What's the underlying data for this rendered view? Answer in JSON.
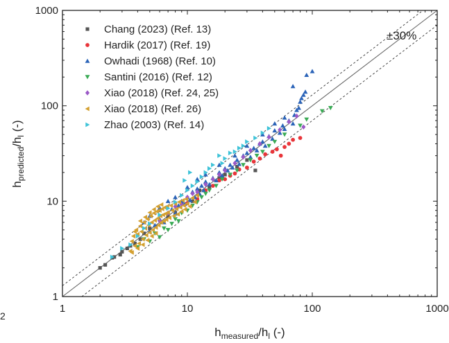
{
  "chart_data": {
    "type": "scatter",
    "xscale": "log",
    "yscale": "log",
    "xlim": [
      1,
      1000
    ],
    "ylim": [
      1,
      1000
    ],
    "xticks": [
      "1",
      "10",
      "100",
      "1000"
    ],
    "yticks": [
      "1",
      "10",
      "100",
      "1000"
    ],
    "xlabel": {
      "main": "h",
      "sub1": "measured",
      "mid": "/h",
      "sub2": "l",
      "end": " (-)"
    },
    "ylabel": {
      "main": "h",
      "sub1": "predicted",
      "mid": "/h",
      "sub2": "l",
      "end": " (-)"
    },
    "annotation": "±30%",
    "reference_lines": [
      {
        "kind": "parity",
        "factor": 1.0,
        "style": "solid"
      },
      {
        "kind": "band",
        "factor": 1.3,
        "style": "dashed"
      },
      {
        "kind": "band",
        "factor": 0.7,
        "style": "dashed"
      }
    ],
    "legend_position": "top-left",
    "series": [
      {
        "name": "Chang (2023) (Ref. 13)",
        "marker": "square",
        "color": "#555555",
        "points": [
          [
            2.0,
            2.0
          ],
          [
            2.2,
            2.15
          ],
          [
            2.5,
            2.55
          ],
          [
            2.6,
            2.6
          ],
          [
            2.9,
            2.75
          ],
          [
            3.0,
            2.95
          ],
          [
            3.3,
            3.2
          ],
          [
            3.5,
            3.4
          ],
          [
            3.8,
            3.6
          ],
          [
            4.2,
            4.0
          ],
          [
            4.5,
            4.6
          ],
          [
            5.0,
            5.2
          ],
          [
            5.6,
            5.4
          ],
          [
            6.2,
            6.0
          ],
          [
            7.0,
            6.9
          ],
          [
            8.0,
            7.6
          ],
          [
            9.0,
            9.5
          ],
          [
            11.0,
            10.0
          ],
          [
            12.5,
            13.0
          ],
          [
            15.0,
            14.2
          ],
          [
            18.0,
            17.5
          ],
          [
            20.0,
            19.0
          ],
          [
            25.0,
            23.0
          ],
          [
            30.0,
            27.0
          ],
          [
            35.0,
            21.0
          ]
        ]
      },
      {
        "name": "Hardik (2017) (Ref. 19)",
        "marker": "circle",
        "color": "#e8353a",
        "points": [
          [
            10.0,
            9.5
          ],
          [
            12.0,
            10.5
          ],
          [
            14.0,
            13.0
          ],
          [
            16.0,
            14.5
          ],
          [
            18.0,
            16.5
          ],
          [
            20.0,
            17.0
          ],
          [
            22.0,
            18.5
          ],
          [
            24.0,
            19.5
          ],
          [
            26.0,
            21.5
          ],
          [
            30.0,
            22.5
          ],
          [
            34.0,
            26.0
          ],
          [
            38.0,
            28.0
          ],
          [
            42.0,
            31.0
          ],
          [
            48.0,
            33.0
          ],
          [
            52.0,
            35.0
          ],
          [
            56.0,
            30.0
          ],
          [
            60.0,
            37.0
          ],
          [
            65.0,
            40.0
          ],
          [
            70.0,
            44.0
          ],
          [
            80.0,
            46.0
          ]
        ]
      },
      {
        "name": "Owhadi (1968) (Ref. 10)",
        "marker": "triangle-up",
        "color": "#2a63b8",
        "points": [
          [
            5.0,
            4.8
          ],
          [
            5.5,
            5.6
          ],
          [
            6.0,
            6.5
          ],
          [
            6.5,
            6.0
          ],
          [
            7.0,
            7.6
          ],
          [
            7.5,
            8.2
          ],
          [
            8.0,
            7.4
          ],
          [
            8.5,
            9.0
          ],
          [
            9.0,
            10.0
          ],
          [
            9.5,
            9.3
          ],
          [
            10.0,
            11.0
          ],
          [
            10.5,
            10.2
          ],
          [
            11.0,
            12.5
          ],
          [
            11.5,
            11.0
          ],
          [
            12.0,
            13.5
          ],
          [
            12.5,
            12.0
          ],
          [
            13.0,
            14.5
          ],
          [
            13.5,
            13.0
          ],
          [
            14.0,
            16.0
          ],
          [
            15.0,
            15.0
          ],
          [
            16.0,
            17.5
          ],
          [
            17.0,
            16.5
          ],
          [
            18.0,
            20.0
          ],
          [
            19.0,
            18.5
          ],
          [
            20.0,
            22.0
          ],
          [
            21.0,
            21.0
          ],
          [
            22.0,
            24.0
          ],
          [
            23.0,
            22.5
          ],
          [
            25.0,
            27.0
          ],
          [
            26.0,
            24.5
          ],
          [
            28.0,
            30.0
          ],
          [
            30.0,
            32.0
          ],
          [
            32.0,
            29.0
          ],
          [
            34.0,
            36.0
          ],
          [
            36.0,
            34.0
          ],
          [
            38.0,
            40.0
          ],
          [
            40.0,
            42.0
          ],
          [
            42.0,
            38.0
          ],
          [
            45.0,
            48.0
          ],
          [
            48.0,
            45.0
          ],
          [
            50.0,
            55.0
          ],
          [
            55.0,
            52.0
          ],
          [
            58.0,
            62.0
          ],
          [
            60.0,
            57.0
          ],
          [
            65.0,
            70.0
          ],
          [
            70.0,
            65.0
          ],
          [
            72.0,
            80.0
          ],
          [
            75.0,
            90.0
          ],
          [
            78.0,
            95.0
          ],
          [
            80.0,
            110.0
          ],
          [
            82.0,
            120.0
          ],
          [
            85.0,
            130.0
          ],
          [
            88.0,
            140.0
          ],
          [
            100.0,
            230.0
          ],
          [
            90.0,
            210.0
          ],
          [
            70.0,
            160.0
          ],
          [
            60.0,
            75.0
          ],
          [
            50.0,
            65.0
          ],
          [
            40.0,
            50.0
          ],
          [
            30.0,
            38.0
          ],
          [
            24.0,
            30.0
          ],
          [
            18.0,
            24.0
          ],
          [
            14.0,
            19.0
          ],
          [
            12.0,
            17.0
          ],
          [
            10.0,
            14.0
          ],
          [
            8.0,
            11.0
          ],
          [
            7.0,
            10.0
          ],
          [
            6.0,
            8.5
          ],
          [
            4.5,
            6.0
          ],
          [
            5.0,
            7.0
          ]
        ]
      },
      {
        "name": "Santini (2016) (Ref. 12)",
        "marker": "triangle-down",
        "color": "#3aaa55",
        "points": [
          [
            4.0,
            3.3
          ],
          [
            4.5,
            4.0
          ],
          [
            5.0,
            3.8
          ],
          [
            5.5,
            4.6
          ],
          [
            6.0,
            4.2
          ],
          [
            6.5,
            5.2
          ],
          [
            7.0,
            5.0
          ],
          [
            7.5,
            5.8
          ],
          [
            8.0,
            6.5
          ],
          [
            8.5,
            6.2
          ],
          [
            9.0,
            7.5
          ],
          [
            10.0,
            8.0
          ],
          [
            11.0,
            9.0
          ],
          [
            12.0,
            9.8
          ],
          [
            13.0,
            11.0
          ],
          [
            14.0,
            12.0
          ],
          [
            15.0,
            13.0
          ],
          [
            17.0,
            14.5
          ],
          [
            19.0,
            17.0
          ],
          [
            22.0,
            19.0
          ],
          [
            25.0,
            21.0
          ],
          [
            28.0,
            24.0
          ],
          [
            32.0,
            27.0
          ],
          [
            36.0,
            30.0
          ],
          [
            40.0,
            33.0
          ],
          [
            45.0,
            38.0
          ],
          [
            50.0,
            42.0
          ],
          [
            60.0,
            50.0
          ],
          [
            80.0,
            62.0
          ],
          [
            90.0,
            72.0
          ],
          [
            140.0,
            95.0
          ],
          [
            120.0,
            88.0
          ]
        ]
      },
      {
        "name": "Xiao (2018) (Ref. 24, 25)",
        "marker": "diamond",
        "color": "#9b59c7",
        "points": [
          [
            6.0,
            6.2
          ],
          [
            7.0,
            7.5
          ],
          [
            8.0,
            8.8
          ],
          [
            9.0,
            9.2
          ],
          [
            10.0,
            11.0
          ],
          [
            11.0,
            12.0
          ],
          [
            12.0,
            12.5
          ],
          [
            14.0,
            15.0
          ],
          [
            16.0,
            17.0
          ],
          [
            18.0,
            19.0
          ],
          [
            20.0,
            21.0
          ],
          [
            24.0,
            25.0
          ],
          [
            28.0,
            29.0
          ],
          [
            32.0,
            34.0
          ],
          [
            38.0,
            40.0
          ],
          [
            45.0,
            47.0
          ],
          [
            55.0,
            56.0
          ],
          [
            65.0,
            68.0
          ],
          [
            75.0,
            78.0
          ],
          [
            85.0,
            60.0
          ]
        ]
      },
      {
        "name": "Xiao (2018) (Ref. 26)",
        "marker": "triangle-left",
        "color": "#d4a030",
        "points": [
          [
            3.5,
            3.0
          ],
          [
            3.6,
            3.8
          ],
          [
            3.7,
            4.3
          ],
          [
            3.8,
            3.4
          ],
          [
            3.9,
            5.0
          ],
          [
            4.0,
            4.5
          ],
          [
            4.1,
            3.6
          ],
          [
            4.2,
            5.5
          ],
          [
            4.3,
            4.8
          ],
          [
            4.4,
            4.0
          ],
          [
            4.5,
            6.0
          ],
          [
            4.6,
            5.2
          ],
          [
            4.7,
            4.4
          ],
          [
            4.8,
            6.5
          ],
          [
            4.9,
            5.6
          ],
          [
            5.0,
            4.7
          ],
          [
            5.1,
            7.0
          ],
          [
            5.2,
            6.0
          ],
          [
            5.3,
            5.0
          ],
          [
            5.4,
            7.5
          ],
          [
            5.5,
            6.3
          ],
          [
            5.6,
            5.3
          ],
          [
            5.7,
            7.8
          ],
          [
            5.8,
            6.6
          ],
          [
            5.9,
            5.6
          ],
          [
            6.0,
            8.0
          ],
          [
            6.1,
            7.0
          ],
          [
            6.2,
            6.0
          ],
          [
            6.3,
            8.3
          ],
          [
            6.4,
            7.2
          ],
          [
            6.5,
            6.2
          ],
          [
            6.6,
            8.6
          ],
          [
            6.7,
            7.4
          ],
          [
            6.8,
            6.4
          ],
          [
            6.9,
            8.8
          ],
          [
            7.0,
            7.6
          ],
          [
            7.2,
            6.7
          ],
          [
            7.4,
            9.0
          ],
          [
            7.6,
            8.0
          ],
          [
            7.8,
            7.0
          ],
          [
            8.0,
            9.4
          ],
          [
            8.2,
            8.3
          ],
          [
            8.4,
            7.3
          ],
          [
            8.6,
            9.8
          ],
          [
            8.8,
            8.6
          ],
          [
            9.0,
            7.8
          ],
          [
            9.2,
            10.2
          ],
          [
            9.4,
            9.0
          ],
          [
            9.6,
            8.2
          ],
          [
            9.8,
            10.5
          ],
          [
            10.0,
            9.4
          ],
          [
            10.5,
            8.8
          ],
          [
            11.0,
            10.8
          ],
          [
            11.5,
            9.8
          ],
          [
            12.0,
            11.5
          ],
          [
            3.8,
            4.8
          ],
          [
            4.2,
            6.2
          ],
          [
            4.6,
            6.8
          ],
          [
            5.0,
            7.6
          ],
          [
            5.4,
            8.2
          ],
          [
            5.8,
            8.8
          ],
          [
            6.2,
            9.2
          ],
          [
            3.6,
            2.9
          ],
          [
            4.0,
            3.2
          ],
          [
            4.4,
            3.5
          ],
          [
            4.8,
            3.9
          ],
          [
            5.2,
            4.3
          ],
          [
            5.6,
            4.6
          ]
        ]
      },
      {
        "name": "Zhao (2003) (Ref. 14)",
        "marker": "triangle-right",
        "color": "#3fc3d8",
        "points": [
          [
            2.5,
            2.6
          ],
          [
            3.0,
            3.2
          ],
          [
            3.5,
            3.5
          ],
          [
            4.0,
            4.3
          ],
          [
            4.5,
            5.2
          ],
          [
            5.0,
            5.8
          ],
          [
            6.0,
            7.2
          ],
          [
            7.0,
            8.4
          ],
          [
            8.0,
            9.8
          ],
          [
            9.0,
            11.5
          ],
          [
            10.0,
            13.0
          ],
          [
            11.0,
            14.5
          ],
          [
            12.0,
            16.0
          ],
          [
            13.0,
            18.0
          ],
          [
            14.0,
            20.0
          ],
          [
            15.0,
            22.0
          ],
          [
            16.0,
            24.0
          ],
          [
            18.0,
            30.0
          ],
          [
            19.0,
            25.0
          ],
          [
            20.0,
            28.0
          ],
          [
            22.0,
            32.0
          ],
          [
            24.0,
            33.0
          ],
          [
            26.0,
            36.0
          ],
          [
            28.0,
            38.0
          ],
          [
            30.0,
            42.0
          ],
          [
            35.0,
            46.0
          ],
          [
            40.0,
            52.0
          ],
          [
            45.0,
            58.0
          ],
          [
            9.5,
            16.5
          ],
          [
            10.5,
            20.0
          ]
        ]
      }
    ]
  },
  "page_marker": "2"
}
